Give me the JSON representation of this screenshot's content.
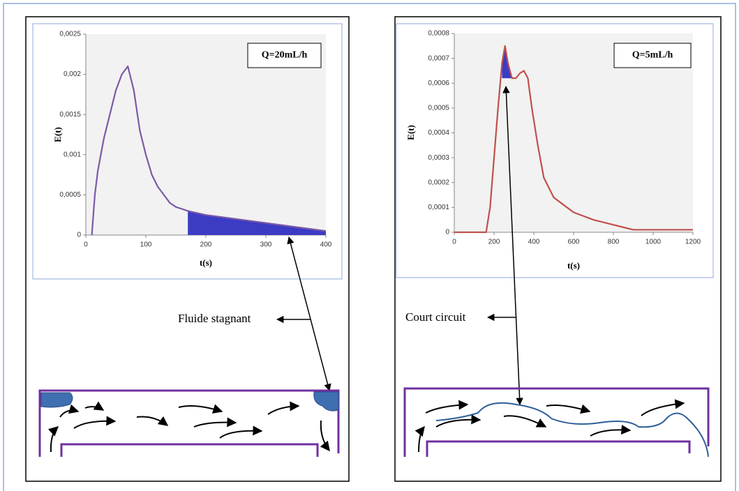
{
  "chart_data": [
    {
      "type": "line",
      "label_box": "Q=20mL/h",
      "xlabel": "t(s)",
      "ylabel": "E(t)",
      "x": [
        10,
        15,
        20,
        30,
        40,
        50,
        60,
        70,
        80,
        90,
        100,
        110,
        120,
        130,
        140,
        150,
        170,
        200,
        250,
        300,
        350,
        400
      ],
      "series": [
        {
          "color": "#7b5aa6",
          "values": [
            0,
            0.0005,
            0.0008,
            0.0012,
            0.0015,
            0.0018,
            0.002,
            0.0021,
            0.0018,
            0.0013,
            0.001,
            0.00075,
            0.0006,
            0.0005,
            0.0004,
            0.00035,
            0.0003,
            0.00025,
            0.0002,
            0.00015,
            0.0001,
            5e-05
          ]
        }
      ],
      "shaded_range": [
        170,
        400
      ],
      "shade_color": "#3b3bc4",
      "xlim": [
        0,
        400
      ],
      "xticks": [
        0,
        100,
        200,
        300,
        400
      ],
      "ylim": [
        0,
        0.0025
      ],
      "yticks": [
        0,
        {
          "value": 0.0005,
          "label": "0,0005"
        },
        {
          "value": 0.001,
          "label": "0,001"
        },
        {
          "value": 0.0015,
          "label": "0,0015"
        },
        {
          "value": 0.002,
          "label": "0,002"
        },
        {
          "value": 0.0025,
          "label": "0,0025"
        }
      ],
      "annotation": "Fluide stagnant"
    },
    {
      "type": "line",
      "label_box": "Q=5mL/h",
      "xlabel": "t(s)",
      "ylabel": "E(t)",
      "x": [
        0,
        160,
        180,
        200,
        220,
        240,
        255,
        270,
        290,
        310,
        330,
        350,
        370,
        390,
        420,
        450,
        500,
        550,
        600,
        700,
        800,
        850,
        900,
        1000,
        1100,
        1200
      ],
      "series": [
        {
          "color": "#c0504d",
          "values": [
            0,
            0,
            0.0001,
            0.0003,
            0.0005,
            0.00068,
            0.00075,
            0.00068,
            0.00062,
            0.00062,
            0.00064,
            0.00065,
            0.00062,
            0.0005,
            0.00035,
            0.00022,
            0.00014,
            0.00011,
            8e-05,
            5e-05,
            3e-05,
            2e-05,
            1e-05,
            1e-05,
            1e-05,
            1e-05
          ]
        }
      ],
      "shaded_range": [
        240,
        290
      ],
      "shaded_floor": 0.00062,
      "shade_color": "#3b3bc4",
      "xlim": [
        0,
        1200
      ],
      "xticks": [
        0,
        200,
        400,
        600,
        800,
        1000,
        1200
      ],
      "ylim": [
        0,
        0.0008
      ],
      "yticks": [
        0,
        {
          "value": 0.0001,
          "label": "0,0001"
        },
        {
          "value": 0.0002,
          "label": "0,0002"
        },
        {
          "value": 0.0003,
          "label": "0,0003"
        },
        {
          "value": 0.0004,
          "label": "0,0004"
        },
        {
          "value": 0.0005,
          "label": "0,0005"
        },
        {
          "value": 0.0006,
          "label": "0,0006"
        },
        {
          "value": 0.0007,
          "label": "0,0007"
        },
        {
          "value": 0.0008,
          "label": "0,0008"
        }
      ],
      "annotation": "Court circuit"
    }
  ]
}
